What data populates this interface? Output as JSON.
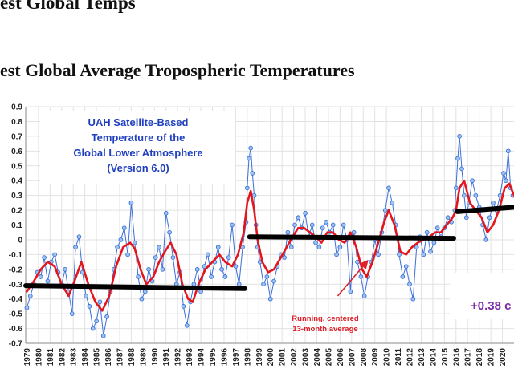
{
  "page": {
    "top_title": "est Global Temps",
    "main_title": "est Global Average Tropospheric Temperatures"
  },
  "colors": {
    "monthly": "#3a6fd8",
    "monthly_marker_fill": "#9ec2ee",
    "running_avg": "#e3161e",
    "period_avg": "#000000",
    "info_text": "#1f3fbf",
    "annotation": "#e0202a",
    "shift_text": "#7b2aa8",
    "grid": "#e2e2e2"
  },
  "chart_data": {
    "type": "line",
    "title": "",
    "xlabel": "",
    "ylabel": "",
    "xlim": [
      1978.9,
      2021.0
    ],
    "ylim": [
      -0.7,
      0.9
    ],
    "y_ticks": [
      "0.9",
      "0.8",
      "0.7",
      "0.6",
      "0.5",
      "0.4",
      "0.3",
      "0.2",
      "0.1",
      "0",
      "-0.1",
      "-0.2",
      "-0.3",
      "-0.4",
      "-0.5",
      "-0.6",
      "-0.7"
    ],
    "x_ticks": [
      "1979",
      "1980",
      "1981",
      "1982",
      "1983",
      "1984",
      "1985",
      "1986",
      "1987",
      "1988",
      "1989",
      "1990",
      "1991",
      "1992",
      "1993",
      "1994",
      "1995",
      "1996",
      "1997",
      "1998",
      "1999",
      "2000",
      "2001",
      "2002",
      "2003",
      "2004",
      "2005",
      "2006",
      "2007",
      "2008",
      "2009",
      "2010",
      "2011",
      "2012",
      "2013",
      "2014",
      "2015",
      "2016",
      "2017",
      "2018",
      "2019",
      "2020"
    ],
    "grid": true,
    "legend": "none",
    "info_box": [
      "UAH Satellite-Based",
      "Temperature of the",
      "Global Lower Atmosphere",
      "(Version 6.0)"
    ],
    "annotation": {
      "lines": [
        "Running, centered",
        "13-month average"
      ],
      "arrow_from": [
        2005.8,
        -0.38
      ],
      "arrow_to": [
        2008.4,
        -0.14
      ]
    },
    "shift_label": "+0.38 c",
    "series": [
      {
        "role": "monthly",
        "x": [
          1979.0,
          1979.3,
          1979.6,
          1979.9,
          1980.2,
          1980.5,
          1980.8,
          1981.1,
          1981.4,
          1981.7,
          1982.0,
          1982.3,
          1982.6,
          1982.9,
          1983.2,
          1983.5,
          1983.8,
          1984.1,
          1984.4,
          1984.7,
          1985.0,
          1985.3,
          1985.6,
          1985.9,
          1986.2,
          1986.5,
          1986.8,
          1987.1,
          1987.4,
          1987.7,
          1988.0,
          1988.3,
          1988.6,
          1988.9,
          1989.2,
          1989.5,
          1989.8,
          1990.1,
          1990.4,
          1990.7,
          1991.0,
          1991.3,
          1991.6,
          1991.9,
          1992.2,
          1992.5,
          1992.8,
          1993.1,
          1993.4,
          1993.7,
          1994.0,
          1994.3,
          1994.6,
          1994.9,
          1995.2,
          1995.5,
          1995.8,
          1996.1,
          1996.4,
          1996.7,
          1997.0,
          1997.3,
          1997.6,
          1997.9,
          1998.0,
          1998.15,
          1998.3,
          1998.45,
          1998.6,
          1998.75,
          1998.9,
          1999.1,
          1999.4,
          1999.7,
          2000.0,
          2000.3,
          2000.6,
          2000.9,
          2001.2,
          2001.5,
          2001.8,
          2002.1,
          2002.4,
          2002.7,
          2003.0,
          2003.3,
          2003.6,
          2003.9,
          2004.2,
          2004.5,
          2004.8,
          2005.1,
          2005.4,
          2005.7,
          2006.0,
          2006.3,
          2006.6,
          2006.9,
          2007.2,
          2007.5,
          2007.8,
          2008.1,
          2008.4,
          2008.7,
          2009.0,
          2009.3,
          2009.6,
          2009.9,
          2010.2,
          2010.5,
          2010.8,
          2011.1,
          2011.4,
          2011.7,
          2012.0,
          2012.3,
          2012.6,
          2012.9,
          2013.2,
          2013.5,
          2013.8,
          2014.1,
          2014.4,
          2014.7,
          2015.0,
          2015.3,
          2015.6,
          2015.9,
          2016.0,
          2016.15,
          2016.3,
          2016.5,
          2016.7,
          2016.9,
          2017.1,
          2017.4,
          2017.7,
          2018.0,
          2018.3,
          2018.6,
          2018.9,
          2019.2,
          2019.5,
          2019.8,
          2020.1,
          2020.3,
          2020.5,
          2020.7,
          2020.9
        ],
        "values": [
          -0.46,
          -0.38,
          -0.3,
          -0.22,
          -0.25,
          -0.12,
          -0.28,
          -0.15,
          -0.1,
          -0.22,
          -0.3,
          -0.2,
          -0.35,
          -0.5,
          -0.05,
          0.02,
          -0.22,
          -0.38,
          -0.45,
          -0.6,
          -0.55,
          -0.42,
          -0.65,
          -0.52,
          -0.35,
          -0.2,
          -0.05,
          0.0,
          0.08,
          -0.1,
          0.25,
          -0.02,
          -0.25,
          -0.4,
          -0.35,
          -0.2,
          -0.28,
          -0.12,
          -0.05,
          -0.2,
          0.18,
          0.05,
          -0.12,
          -0.3,
          -0.22,
          -0.45,
          -0.58,
          -0.42,
          -0.3,
          -0.2,
          -0.35,
          -0.18,
          -0.1,
          -0.25,
          -0.15,
          -0.05,
          -0.2,
          -0.25,
          -0.12,
          0.1,
          -0.18,
          -0.3,
          -0.05,
          0.12,
          0.35,
          0.55,
          0.62,
          0.45,
          0.3,
          0.1,
          -0.05,
          -0.15,
          -0.3,
          -0.25,
          -0.4,
          -0.28,
          -0.18,
          -0.1,
          -0.12,
          0.05,
          -0.05,
          0.1,
          0.15,
          0.08,
          0.18,
          0.02,
          0.1,
          -0.02,
          -0.05,
          0.08,
          0.12,
          0.05,
          0.1,
          -0.1,
          -0.05,
          0.1,
          0.0,
          -0.35,
          0.05,
          -0.15,
          -0.25,
          -0.38,
          -0.25,
          -0.15,
          0.0,
          -0.1,
          0.05,
          0.2,
          0.35,
          0.25,
          0.1,
          -0.1,
          -0.25,
          -0.18,
          -0.3,
          -0.4,
          -0.05,
          0.02,
          -0.1,
          0.05,
          -0.08,
          -0.02,
          0.08,
          0.02,
          0.08,
          0.15,
          0.12,
          0.2,
          0.35,
          0.55,
          0.7,
          0.48,
          0.3,
          0.15,
          0.25,
          0.4,
          0.3,
          0.22,
          0.1,
          0.0,
          0.15,
          0.25,
          0.2,
          0.3,
          0.45,
          0.4,
          0.6,
          0.35,
          0.3
        ]
      },
      {
        "role": "running_average",
        "x": [
          1979.0,
          1979.6,
          1980.2,
          1980.8,
          1981.4,
          1982.0,
          1982.6,
          1983.1,
          1983.7,
          1984.3,
          1984.9,
          1985.5,
          1986.1,
          1986.7,
          1987.3,
          1987.9,
          1988.3,
          1988.8,
          1989.3,
          1989.9,
          1990.4,
          1990.9,
          1991.4,
          1991.9,
          1992.4,
          1992.9,
          1993.3,
          1993.8,
          1994.4,
          1995.0,
          1995.6,
          1996.1,
          1996.7,
          1997.2,
          1997.7,
          1998.0,
          1998.3,
          1998.6,
          1998.9,
          1999.3,
          1999.8,
          2000.3,
          2000.9,
          2001.4,
          2001.9,
          2002.4,
          2002.9,
          2003.4,
          2003.9,
          2004.4,
          2004.9,
          2005.4,
          2005.9,
          2006.4,
          2006.9,
          2007.4,
          2007.9,
          2008.3,
          2008.8,
          2009.3,
          2009.8,
          2010.2,
          2010.7,
          2011.2,
          2011.7,
          2012.2,
          2012.7,
          2013.2,
          2013.7,
          2014.2,
          2014.7,
          2015.2,
          2015.7,
          2016.0,
          2016.3,
          2016.7,
          2017.2,
          2017.7,
          2018.2,
          2018.7,
          2019.2,
          2019.7,
          2020.2,
          2020.6,
          2021.0
        ],
        "values": [
          -0.35,
          -0.28,
          -0.2,
          -0.15,
          -0.18,
          -0.3,
          -0.38,
          -0.28,
          -0.15,
          -0.3,
          -0.42,
          -0.48,
          -0.38,
          -0.18,
          -0.05,
          -0.02,
          -0.06,
          -0.2,
          -0.3,
          -0.25,
          -0.15,
          -0.08,
          -0.02,
          -0.1,
          -0.3,
          -0.4,
          -0.42,
          -0.3,
          -0.2,
          -0.15,
          -0.1,
          -0.15,
          -0.18,
          -0.1,
          0.05,
          0.25,
          0.33,
          0.2,
          0.0,
          -0.15,
          -0.22,
          -0.2,
          -0.12,
          -0.05,
          0.02,
          0.08,
          0.08,
          0.05,
          0.02,
          -0.02,
          0.05,
          0.05,
          0.0,
          -0.02,
          0.05,
          -0.05,
          -0.2,
          -0.25,
          -0.15,
          -0.02,
          0.12,
          0.2,
          0.1,
          -0.08,
          -0.1,
          -0.05,
          -0.02,
          0.0,
          0.02,
          0.05,
          0.05,
          0.1,
          0.15,
          0.2,
          0.35,
          0.4,
          0.25,
          0.2,
          0.15,
          0.05,
          0.1,
          0.2,
          0.35,
          0.38,
          0.3
        ]
      },
      {
        "role": "period_average",
        "segments": [
          {
            "x": [
              1978.9,
              1997.8
            ],
            "values": [
              -0.31,
              -0.33
            ]
          },
          {
            "x": [
              1998.2,
              2015.8
            ],
            "values": [
              0.02,
              0.01
            ]
          },
          {
            "x": [
              2016.1,
              2021.0
            ],
            "values": [
              0.19,
              0.22
            ]
          }
        ]
      }
    ]
  }
}
